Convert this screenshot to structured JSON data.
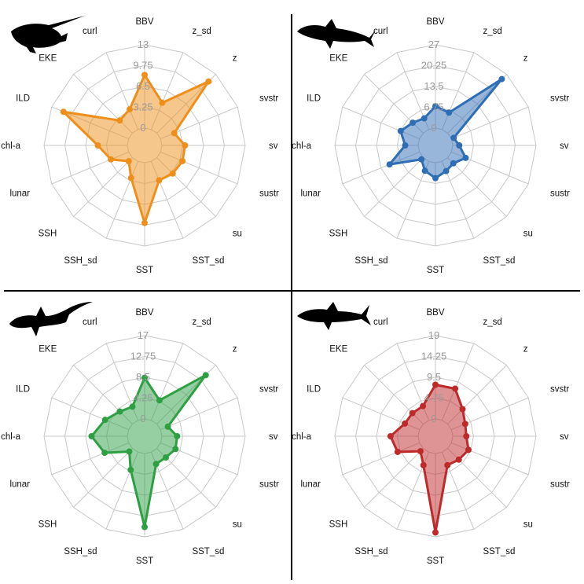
{
  "colors": {
    "swordfish": "#ee8f1c",
    "blue_shark": "#2f6eb5",
    "thresher": "#2ea043",
    "mako": "#be2a2a",
    "grid": "#c8c8c8",
    "divider": "#000000",
    "silhouette": "#000000"
  },
  "icons": [
    "swordfish-silhouette-icon",
    "blue-shark-silhouette-icon",
    "thresher-shark-silhouette-icon",
    "mako-shark-silhouette-icon"
  ],
  "chart_data": [
    {
      "type": "radar",
      "panel": "top-left",
      "color": "#ee8f1c",
      "icon": "swordfish-silhouette-icon",
      "axes": [
        "BBV",
        "z_sd",
        "z",
        "svstr",
        "sv",
        "sustr",
        "su",
        "SST_sd",
        "SST",
        "SSH_sd",
        "SSH",
        "lunar",
        "chl-a",
        "ILD",
        "EKE",
        "curl"
      ],
      "ticks": [
        0,
        3.25,
        6.5,
        9.75,
        13
      ],
      "tick_labels": [
        "0",
        "3.25",
        "6.5",
        "9.75",
        "13"
      ],
      "rmax": 13,
      "values": [
        8.3,
        4.5,
        11.4,
        2.3,
        3.6,
        3.7,
        3.5,
        3.2,
        9.4,
        2.8,
        0.8,
        3.0,
        4.6,
        11.0,
        2.8,
        3.4
      ]
    },
    {
      "type": "radar",
      "panel": "top-right",
      "color": "#2f6eb5",
      "icon": "blue-shark-silhouette-icon",
      "axes": [
        "BBV",
        "z_sd",
        "z",
        "svstr",
        "sv",
        "sustr",
        "su",
        "SST_sd",
        "SST",
        "SSH_sd",
        "SSH",
        "lunar",
        "chl-a",
        "ILD",
        "EKE",
        "curl"
      ],
      "ticks": [
        0,
        6.75,
        13.5,
        20.25,
        27
      ],
      "tick_labels": [
        "0",
        "6.75",
        "13.5",
        "20.25",
        "27"
      ],
      "rmax": 27,
      "values": [
        7.1,
        5.9,
        24.8,
        0.8,
        2.1,
        5.0,
        2.6,
        3.4,
        5.0,
        3.3,
        0.8,
        10.5,
        4.2,
        6.6,
        4.8,
        3.9
      ]
    },
    {
      "type": "radar",
      "panel": "bottom-left",
      "color": "#2ea043",
      "icon": "thresher-shark-silhouette-icon",
      "axes": [
        "BBV",
        "z_sd",
        "z",
        "svstr",
        "sv",
        "sustr",
        "su",
        "SST_sd",
        "SST",
        "SSH_sd",
        "SSH",
        "lunar",
        "chl-a",
        "ILD",
        "EKE",
        "curl"
      ],
      "ticks": [
        0,
        4.25,
        8.5,
        12.75,
        17
      ],
      "tick_labels": [
        "0",
        "4.25",
        "8.5",
        "12.75",
        "17"
      ],
      "rmax": 17,
      "values": [
        8.4,
        4.4,
        14.1,
        1.6,
        3.1,
        3.3,
        2.6,
        2.6,
        15.0,
        3.9,
        0.9,
        5.3,
        7.3,
        5.2,
        3.6,
        3.0
      ]
    },
    {
      "type": "radar",
      "panel": "bottom-right",
      "color": "#be2a2a",
      "icon": "mako-shark-silhouette-icon",
      "axes": [
        "BBV",
        "z_sd",
        "z",
        "svstr",
        "sv",
        "sustr",
        "su",
        "SST_sd",
        "SST",
        "SSH_sd",
        "SSH",
        "lunar",
        "chl-a",
        "ILD",
        "EKE",
        "curl"
      ],
      "ticks": [
        0,
        4.75,
        9.5,
        14.25,
        19
      ],
      "tick_labels": [
        "0",
        "4.75",
        "9.5",
        "14.25",
        "19"
      ],
      "rmax": 19,
      "values": [
        7.8,
        7.8,
        4.8,
        3.4,
        3.1,
        4.2,
        3.6,
        3.2,
        18.0,
        3.2,
        0.9,
        5.4,
        6.3,
        3.6,
        3.5,
        3.5
      ]
    }
  ]
}
